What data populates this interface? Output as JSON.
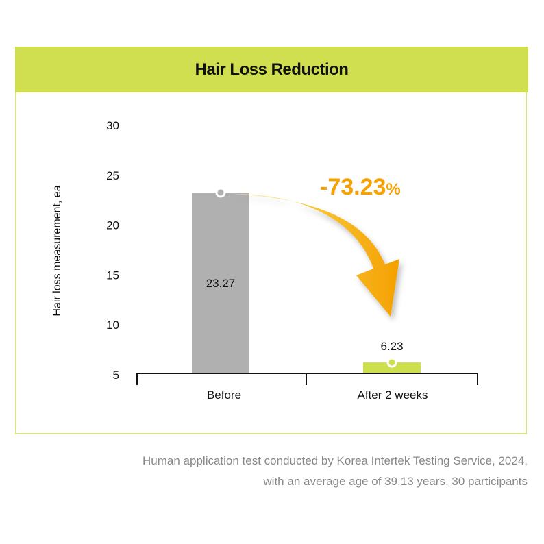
{
  "chart_data": {
    "type": "bar",
    "title": "Hair Loss Reduction",
    "xlabel": "",
    "ylabel": "Hair loss measurement, ea",
    "ylim": [
      5,
      30
    ],
    "yticks": [
      5,
      10,
      15,
      20,
      25,
      30
    ],
    "categories": [
      "Before",
      "After 2 weeks"
    ],
    "values": [
      23.27,
      6.23
    ],
    "value_labels": [
      "23.27",
      "6.23"
    ],
    "colors": [
      "#b0b0b0",
      "#cddf4c"
    ],
    "annotation": {
      "text": "-73.23",
      "suffix": "%",
      "color": "#f5a200"
    },
    "grid": false
  },
  "footnote": [
    "Human application test conducted by Korea Intertek Testing Service, 2024,",
    "with an average age of 39.13 years, 30 participants"
  ]
}
